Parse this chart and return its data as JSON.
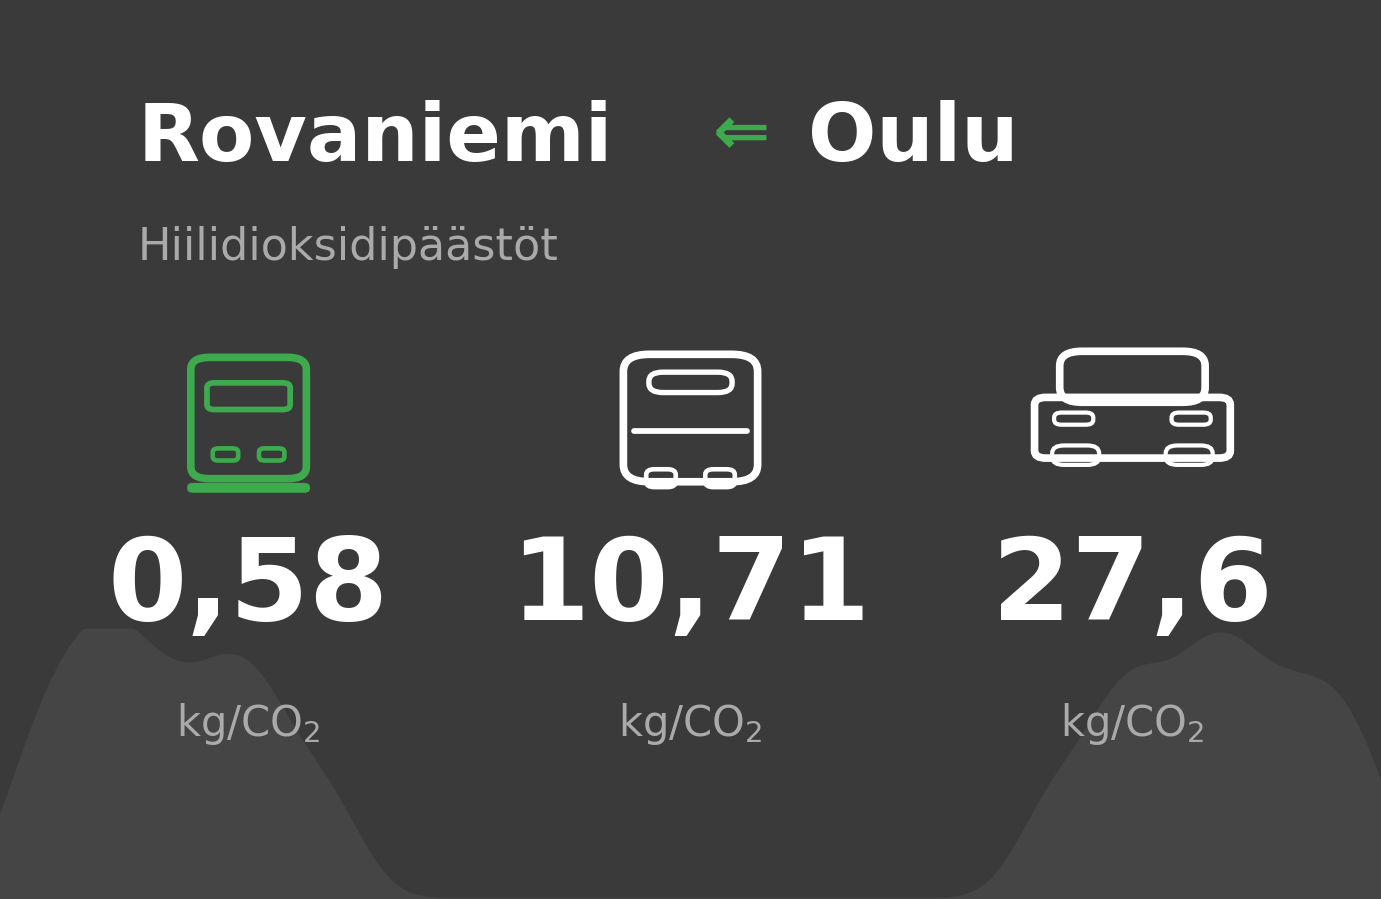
{
  "bg_color": "#3a3a3a",
  "title_city1": "Rovaniemi",
  "title_city2": "Oulu",
  "subtitle": "Hiilidioksidipäästöt",
  "title_color": "#ffffff",
  "arrow_color": "#3daa4e",
  "subtitle_color": "#aaaaaa",
  "values": [
    "0,58",
    "10,71",
    "27,6"
  ],
  "value_color": "#ffffff",
  "unit_color": "#aaaaaa",
  "icon_color_train": "#3daa4e",
  "icon_color_bus": "#ffffff",
  "icon_color_car": "#ffffff",
  "tree_color": "#454545",
  "x_positions": [
    0.18,
    0.5,
    0.82
  ],
  "title_fontsize": 58,
  "subtitle_fontsize": 32,
  "value_fontsize": 82,
  "unit_fontsize": 30
}
